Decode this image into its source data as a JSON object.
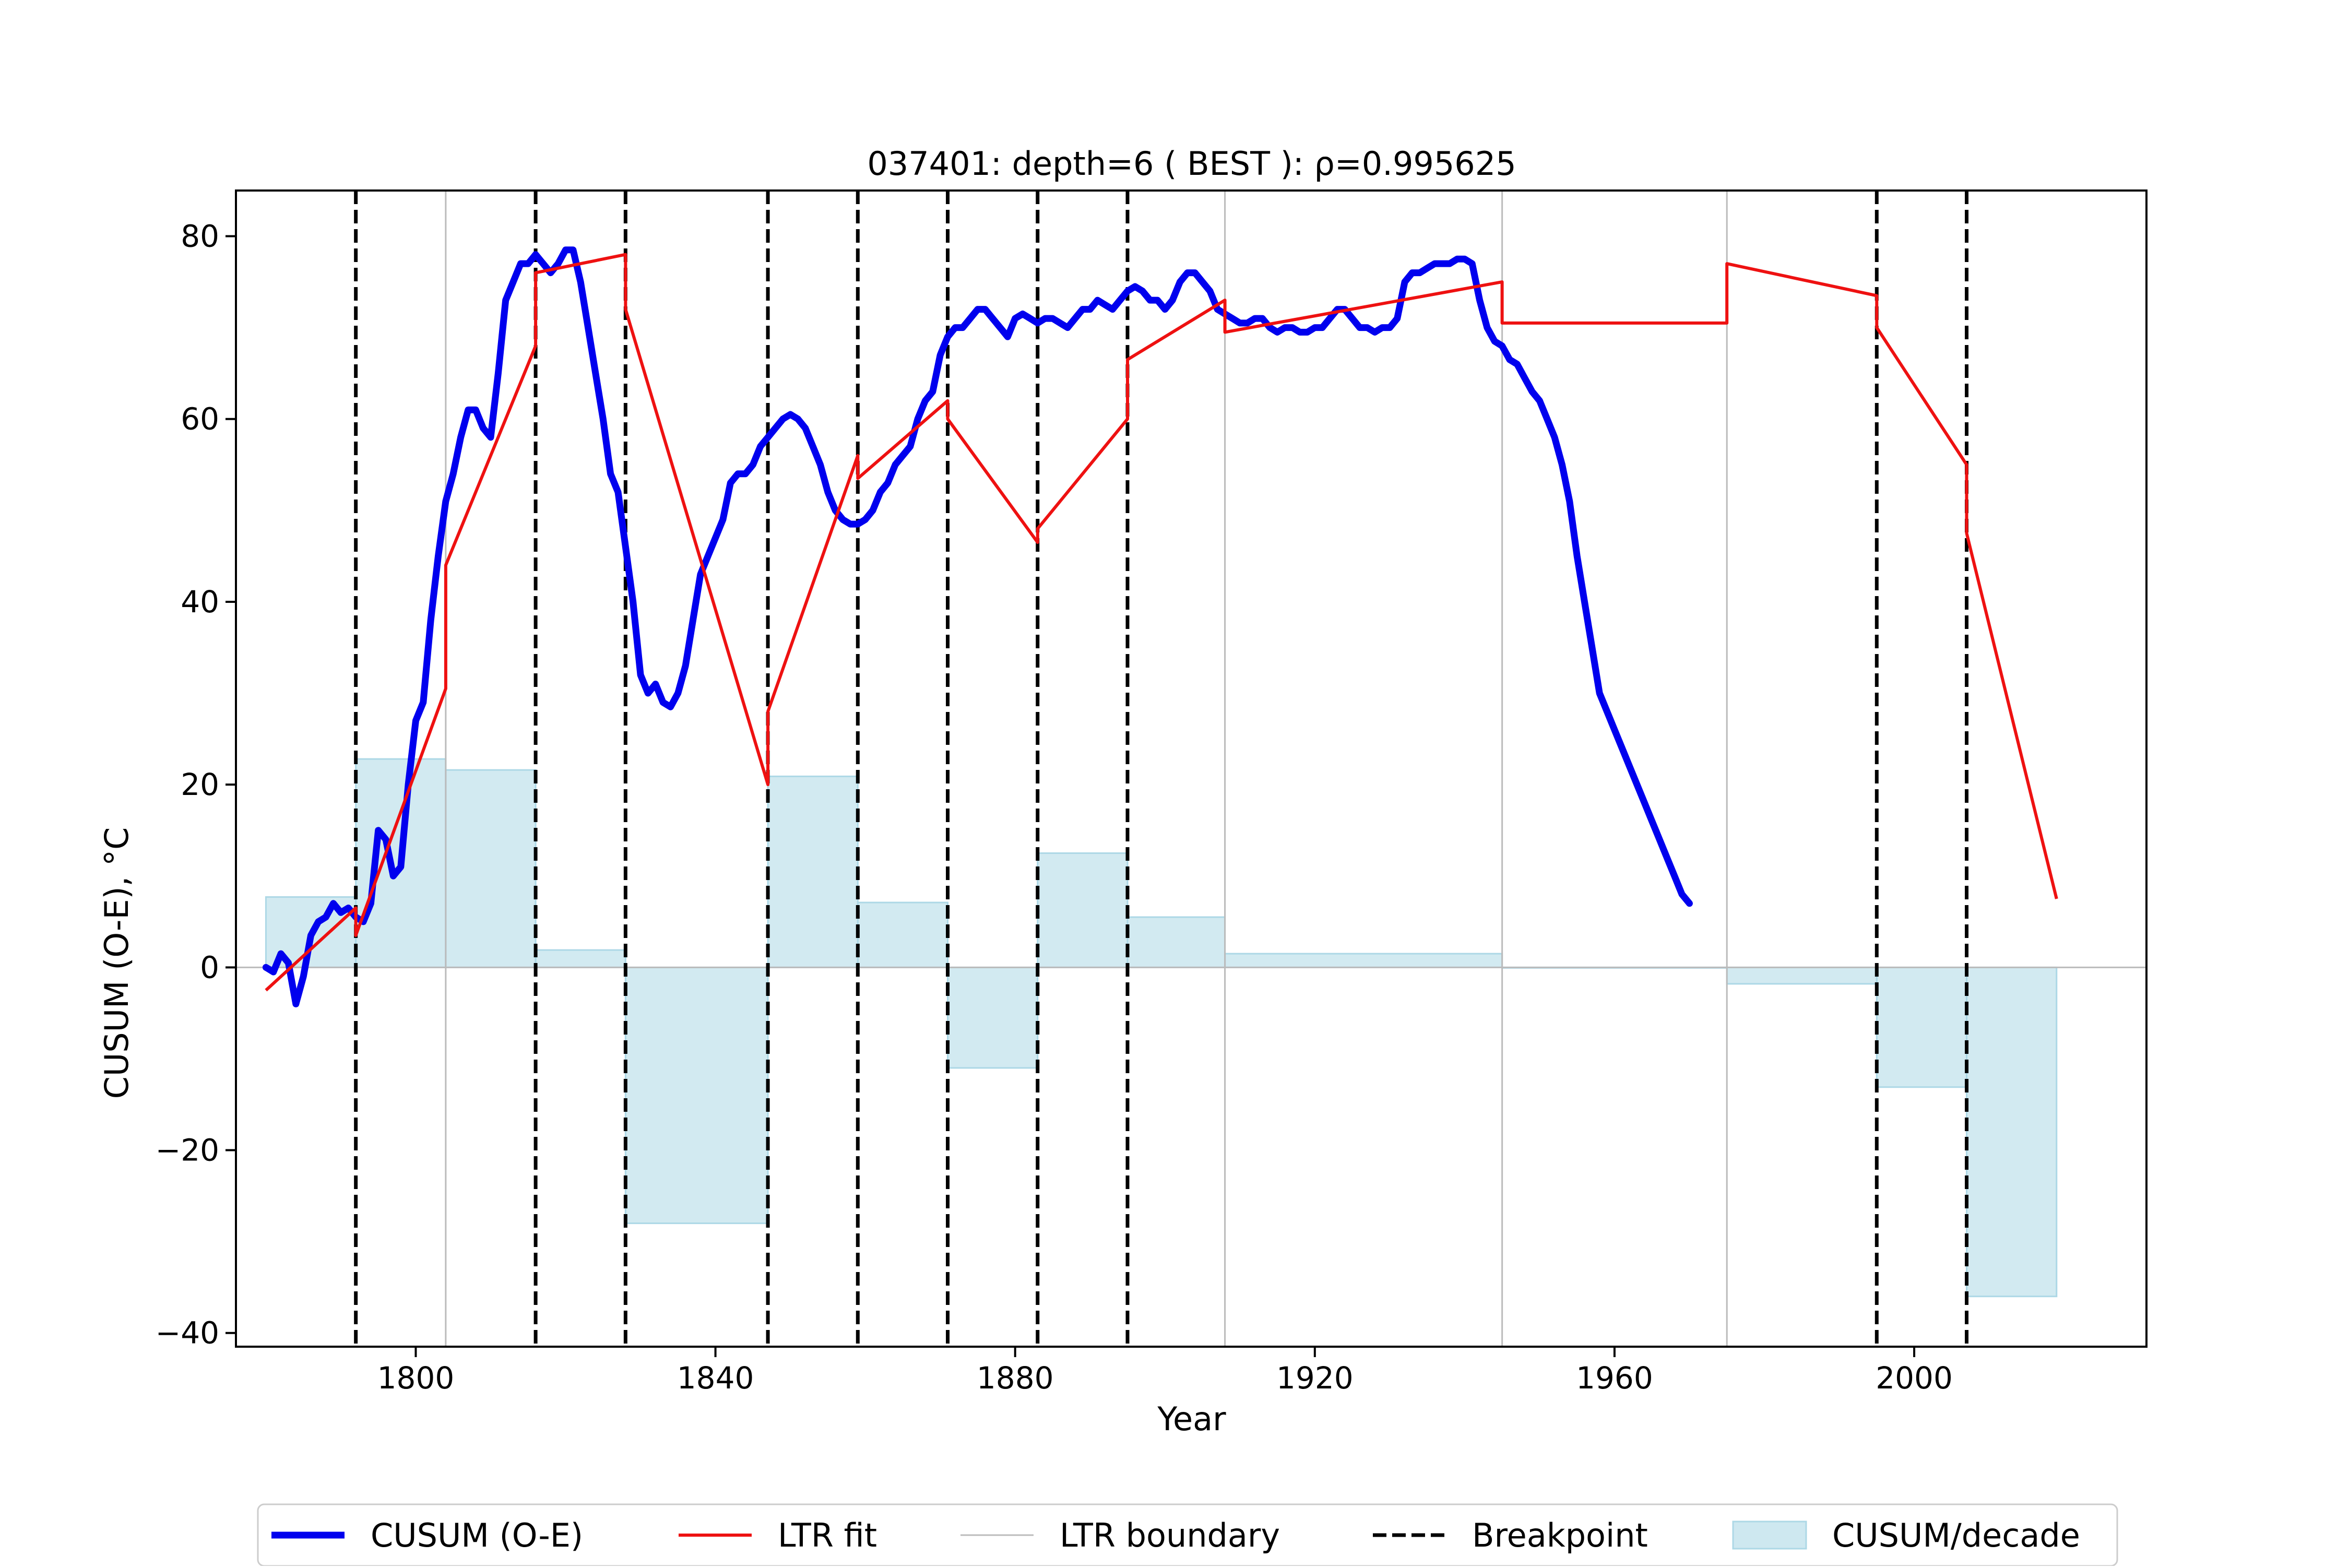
{
  "chart_data": {
    "type": "line",
    "title": "037401: depth=6 ( BEST ): ρ=0.995625",
    "xlabel": "Year",
    "ylabel": "CUSUM (O-E), °C",
    "xlim": [
      1776,
      2031
    ],
    "ylim": [
      -41.5,
      85
    ],
    "xticks": [
      1800,
      1840,
      1880,
      1920,
      1960,
      2000
    ],
    "yticks": [
      -40,
      -20,
      0,
      20,
      40,
      60,
      80
    ],
    "ytick_labels": [
      "−40",
      "−20",
      "0",
      "20",
      "40",
      "60",
      "80"
    ],
    "grid": false,
    "legend_position": "bottom, outside",
    "colors": {
      "cusum": "#0000ee",
      "fit": "#ee1111",
      "boundary": "#bbbbbb",
      "breakpoint": "#000000",
      "decade_fill": "#add8e6"
    },
    "legend": [
      {
        "label": "CUSUM (O-E)",
        "kind": "thick-line",
        "color": "#0000ee"
      },
      {
        "label": "LTR fit",
        "kind": "line",
        "color": "#ee1111"
      },
      {
        "label": "LTR boundary",
        "kind": "thin-line",
        "color": "#bbbbbb"
      },
      {
        "label": "Breakpoint",
        "kind": "dashed-line",
        "color": "#000000"
      },
      {
        "label": "CUSUM/decade",
        "kind": "patch",
        "color": "#add8e6"
      }
    ],
    "breakpoints": [
      1792,
      1816,
      1828,
      1847,
      1859,
      1871,
      1883,
      1895,
      1995,
      2007
    ],
    "ltr_boundaries": [
      1804,
      1908,
      1945,
      1975
    ],
    "cusum": [
      [
        1780,
        0
      ],
      [
        1781,
        -0.5
      ],
      [
        1782,
        1.5
      ],
      [
        1783,
        0.5
      ],
      [
        1784,
        -4
      ],
      [
        1785,
        -1
      ],
      [
        1786,
        3.5
      ],
      [
        1787,
        5
      ],
      [
        1788,
        5.5
      ],
      [
        1789,
        7
      ],
      [
        1790,
        6
      ],
      [
        1791,
        6.5
      ],
      [
        1792,
        5.5
      ],
      [
        1793,
        5
      ],
      [
        1794,
        7
      ],
      [
        1795,
        15
      ],
      [
        1796,
        14
      ],
      [
        1797,
        10
      ],
      [
        1798,
        11
      ],
      [
        1799,
        20
      ],
      [
        1800,
        27
      ],
      [
        1801,
        29
      ],
      [
        1802,
        38
      ],
      [
        1803,
        45
      ],
      [
        1804,
        51
      ],
      [
        1805,
        54
      ],
      [
        1806,
        58
      ],
      [
        1807,
        61
      ],
      [
        1808,
        61
      ],
      [
        1809,
        59
      ],
      [
        1810,
        58
      ],
      [
        1811,
        65
      ],
      [
        1812,
        73
      ],
      [
        1813,
        75
      ],
      [
        1814,
        77
      ],
      [
        1815,
        77
      ],
      [
        1816,
        78
      ],
      [
        1817,
        77
      ],
      [
        1818,
        76
      ],
      [
        1819,
        77
      ],
      [
        1820,
        78.5
      ],
      [
        1821,
        78.5
      ],
      [
        1822,
        75
      ],
      [
        1823,
        70
      ],
      [
        1824,
        65
      ],
      [
        1825,
        60
      ],
      [
        1826,
        54
      ],
      [
        1827,
        52
      ],
      [
        1828,
        46
      ],
      [
        1829,
        40
      ],
      [
        1830,
        32
      ],
      [
        1831,
        30
      ],
      [
        1832,
        31
      ],
      [
        1833,
        29
      ],
      [
        1834,
        28.5
      ],
      [
        1835,
        30
      ],
      [
        1836,
        33
      ],
      [
        1837,
        38
      ],
      [
        1838,
        43
      ],
      [
        1839,
        45
      ],
      [
        1840,
        47
      ],
      [
        1841,
        49
      ],
      [
        1842,
        53
      ],
      [
        1843,
        54
      ],
      [
        1844,
        54
      ],
      [
        1845,
        55
      ],
      [
        1846,
        57
      ],
      [
        1847,
        58
      ],
      [
        1848,
        59
      ],
      [
        1849,
        60
      ],
      [
        1850,
        60.5
      ],
      [
        1851,
        60
      ],
      [
        1852,
        59
      ],
      [
        1853,
        57
      ],
      [
        1854,
        55
      ],
      [
        1855,
        52
      ],
      [
        1856,
        50
      ],
      [
        1857,
        49
      ],
      [
        1858,
        48.5
      ],
      [
        1859,
        48.5
      ],
      [
        1860,
        49
      ],
      [
        1861,
        50
      ],
      [
        1862,
        52
      ],
      [
        1863,
        53
      ],
      [
        1864,
        55
      ],
      [
        1865,
        56
      ],
      [
        1866,
        57
      ],
      [
        1867,
        60
      ],
      [
        1868,
        62
      ],
      [
        1869,
        63
      ],
      [
        1870,
        67
      ],
      [
        1871,
        69
      ],
      [
        1872,
        70
      ],
      [
        1873,
        70
      ],
      [
        1874,
        71
      ],
      [
        1875,
        72
      ],
      [
        1876,
        72
      ],
      [
        1877,
        71
      ],
      [
        1878,
        70
      ],
      [
        1879,
        69
      ],
      [
        1880,
        71
      ],
      [
        1881,
        71.5
      ],
      [
        1882,
        71
      ],
      [
        1883,
        70.5
      ],
      [
        1884,
        71
      ],
      [
        1885,
        71
      ],
      [
        1886,
        70.5
      ],
      [
        1887,
        70
      ],
      [
        1888,
        71
      ],
      [
        1889,
        72
      ],
      [
        1890,
        72
      ],
      [
        1891,
        73
      ],
      [
        1892,
        72.5
      ],
      [
        1893,
        72
      ],
      [
        1894,
        73
      ],
      [
        1895,
        74
      ],
      [
        1896,
        74.5
      ],
      [
        1897,
        74
      ],
      [
        1898,
        73
      ],
      [
        1899,
        73
      ],
      [
        1900,
        72
      ],
      [
        1901,
        73
      ],
      [
        1902,
        75
      ],
      [
        1903,
        76
      ],
      [
        1904,
        76
      ],
      [
        1905,
        75
      ],
      [
        1906,
        74
      ],
      [
        1907,
        72
      ],
      [
        1908,
        71.5
      ],
      [
        1909,
        71
      ],
      [
        1910,
        70.5
      ],
      [
        1911,
        70.5
      ],
      [
        1912,
        71
      ],
      [
        1913,
        71
      ],
      [
        1914,
        70
      ],
      [
        1915,
        69.5
      ],
      [
        1916,
        70
      ],
      [
        1917,
        70
      ],
      [
        1918,
        69.5
      ],
      [
        1919,
        69.5
      ],
      [
        1920,
        70
      ],
      [
        1921,
        70
      ],
      [
        1922,
        71
      ],
      [
        1923,
        72
      ],
      [
        1924,
        72
      ],
      [
        1925,
        71
      ],
      [
        1926,
        70
      ],
      [
        1927,
        70
      ],
      [
        1928,
        69.5
      ],
      [
        1929,
        70
      ],
      [
        1930,
        70
      ],
      [
        1931,
        71
      ],
      [
        1932,
        75
      ],
      [
        1933,
        76
      ],
      [
        1934,
        76
      ],
      [
        1935,
        76.5
      ],
      [
        1936,
        77
      ],
      [
        1937,
        77
      ],
      [
        1938,
        77
      ],
      [
        1939,
        77.5
      ],
      [
        1940,
        77.5
      ],
      [
        1941,
        77
      ],
      [
        1942,
        73
      ],
      [
        1943,
        70
      ],
      [
        1944,
        68.5
      ],
      [
        1945,
        68
      ],
      [
        1946,
        66.5
      ],
      [
        1947,
        66
      ],
      [
        1948,
        64.5
      ],
      [
        1949,
        63
      ],
      [
        1950,
        62
      ],
      [
        1951,
        60
      ],
      [
        1952,
        58
      ],
      [
        1953,
        55
      ],
      [
        1954,
        51
      ],
      [
        1955,
        45
      ],
      [
        1956,
        40
      ],
      [
        1957,
        35
      ],
      [
        1958,
        30
      ],
      [
        1959,
        28
      ],
      [
        1960,
        26
      ],
      [
        1961,
        24
      ],
      [
        1962,
        22
      ],
      [
        1963,
        20
      ],
      [
        1964,
        18
      ],
      [
        1965,
        16
      ],
      [
        1966,
        14
      ],
      [
        1967,
        12
      ],
      [
        1968,
        10
      ],
      [
        1969,
        8
      ],
      [
        1970,
        7
      ]
    ],
    "ltr_fit": [
      [
        [
          1780,
          -2.5
        ],
        [
          1792,
          6.5
        ]
      ],
      [
        [
          1792,
          3.5
        ],
        [
          1804,
          30.5
        ]
      ],
      [
        [
          1804,
          44
        ],
        [
          1816,
          68
        ]
      ],
      [
        [
          1816,
          76
        ],
        [
          1828,
          78
        ]
      ],
      [
        [
          1828,
          72
        ],
        [
          1847,
          20
        ]
      ],
      [
        [
          1847,
          28
        ],
        [
          1859,
          56
        ]
      ],
      [
        [
          1859,
          53.5
        ],
        [
          1871,
          62
        ]
      ],
      [
        [
          1871,
          60
        ],
        [
          1883,
          46.5
        ]
      ],
      [
        [
          1883,
          48
        ],
        [
          1895,
          60
        ]
      ],
      [
        [
          1895,
          66.5
        ],
        [
          1908,
          73
        ]
      ],
      [
        [
          1908,
          69.5
        ],
        [
          1945,
          75
        ]
      ],
      [
        [
          1945,
          70.5
        ],
        [
          1975,
          70.5
        ]
      ],
      [
        [
          1975,
          77
        ],
        [
          1995,
          73.5
        ]
      ],
      [
        [
          1995,
          70
        ],
        [
          2007,
          55
        ]
      ],
      [
        [
          2007,
          47.5
        ],
        [
          2019,
          7.5
        ]
      ]
    ],
    "cusum_per_decade": [
      {
        "from": 1780,
        "to": 1792,
        "value": 7.7
      },
      {
        "from": 1792,
        "to": 1804,
        "value": 22.8
      },
      {
        "from": 1804,
        "to": 1816,
        "value": 21.6
      },
      {
        "from": 1816,
        "to": 1828,
        "value": 1.9
      },
      {
        "from": 1828,
        "to": 1847,
        "value": -28.0
      },
      {
        "from": 1847,
        "to": 1859,
        "value": 20.9
      },
      {
        "from": 1859,
        "to": 1871,
        "value": 7.1
      },
      {
        "from": 1871,
        "to": 1883,
        "value": -11.0
      },
      {
        "from": 1883,
        "to": 1895,
        "value": 12.5
      },
      {
        "from": 1895,
        "to": 1908,
        "value": 5.5
      },
      {
        "from": 1908,
        "to": 1945,
        "value": 1.5
      },
      {
        "from": 1945,
        "to": 1975,
        "value": 0.0
      },
      {
        "from": 1975,
        "to": 1995,
        "value": -1.8
      },
      {
        "from": 1995,
        "to": 2007,
        "value": -13.1
      },
      {
        "from": 2007,
        "to": 2019,
        "value": -36.0
      }
    ]
  }
}
